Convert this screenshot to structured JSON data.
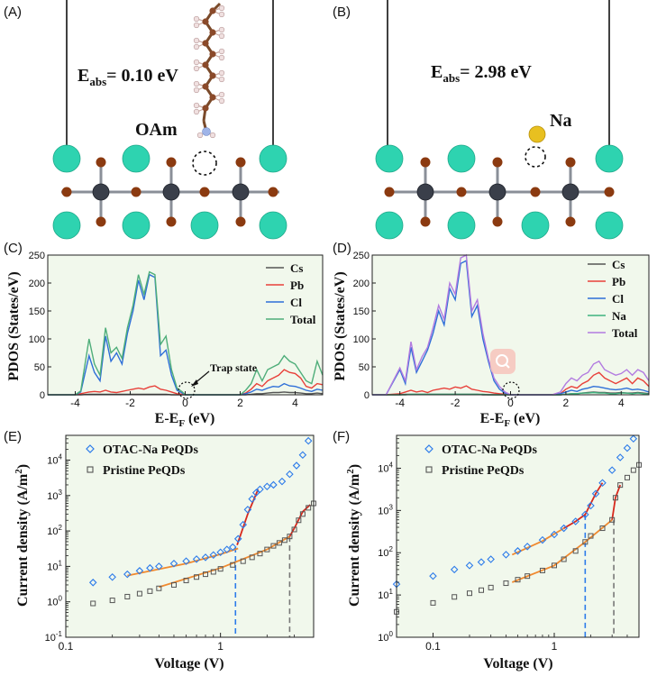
{
  "panels": {
    "a": {
      "letter": "(A)",
      "energy_main": "E",
      "energy_sub": "abs",
      "energy_value": "= 0.10 eV",
      "molecule_label": "OAm"
    },
    "b": {
      "letter": "(B)",
      "energy_main": "E",
      "energy_sub": "abs",
      "energy_value": "= 2.98 eV",
      "atom_label": "Na"
    },
    "c": {
      "letter": "(C)",
      "ylabel": "PDOS (States/eV)",
      "xlabel_main": "E-E",
      "xlabel_sub": "F",
      "xlabel_unit": " (eV)",
      "annotation": "Trap state",
      "yticks": [
        "0",
        "50",
        "100",
        "150",
        "200",
        "250"
      ],
      "xticks": [
        "-4",
        "-2",
        "0",
        "2",
        "4"
      ]
    },
    "d": {
      "letter": "(D)",
      "ylabel": "PDOS (States/eV)",
      "xlabel_main": "E-E",
      "xlabel_sub": "F",
      "xlabel_unit": " (eV)",
      "yticks": [
        "0",
        "50",
        "100",
        "150",
        "200",
        "250"
      ],
      "xticks": [
        "-4",
        "-2",
        "0",
        "2",
        "4"
      ]
    },
    "e": {
      "letter": "(E)",
      "ylabel": "Current density (A/m",
      "ylabel_sup": "2",
      "ylabel_end": ")",
      "xlabel": "Voltage (V)",
      "xticks": [
        "0.1",
        "1"
      ],
      "ytick_exps": [
        "-1",
        "0",
        "1",
        "2",
        "3",
        "4"
      ]
    },
    "f": {
      "letter": "(F)",
      "ylabel": "Current density (A/m",
      "ylabel_sup": "2",
      "ylabel_end": ")",
      "xlabel": "Voltage (V)",
      "xticks": [
        "0.1",
        "1"
      ],
      "ytick_exps": [
        "0",
        "1",
        "2",
        "3",
        "4"
      ]
    }
  },
  "colors": {
    "cs_atom": "#2ED3B0",
    "pb_atom": "#3A3F4A",
    "cl_atom": "#8B3A10",
    "na_atom": "#E8C020",
    "bond": "#8A8F98",
    "plot_bg": "#F1F8EC",
    "cs_line": "#555555",
    "pb_line": "#E8403A",
    "cl_line": "#2E6FD8",
    "na_line": "#3FB27F",
    "total_line": "#B27BE0",
    "total_c": "#4FAE7A",
    "otac": "#2C7BEA",
    "pristine": "#555555",
    "fit_red": "#D8281C",
    "fit_orange": "#F08A30"
  },
  "chart_data": [
    {
      "panel": "C",
      "type": "line",
      "xlabel": "E-E_F (eV)",
      "ylabel": "PDOS (States/eV)",
      "xlim": [
        -5,
        5
      ],
      "ylim": [
        0,
        250
      ],
      "legend_position": "top-right",
      "x": [
        -5,
        -4,
        -3.8,
        -3.5,
        -3.3,
        -3.1,
        -2.9,
        -2.7,
        -2.5,
        -2.3,
        -2.1,
        -1.9,
        -1.7,
        -1.5,
        -1.3,
        -1.1,
        -0.9,
        -0.7,
        -0.5,
        -0.3,
        -0.1,
        0,
        0.2,
        0.5,
        1,
        1.5,
        2,
        2.2,
        2.4,
        2.6,
        2.8,
        3,
        3.2,
        3.4,
        3.6,
        3.8,
        4,
        4.2,
        4.4,
        4.6,
        4.8,
        5
      ],
      "series": [
        {
          "name": "Cs",
          "values": [
            0,
            0,
            0,
            1,
            1,
            1,
            1,
            1,
            1,
            1,
            1,
            1,
            1,
            1,
            1,
            1,
            1,
            1,
            0,
            0,
            0,
            0,
            0,
            0,
            0,
            0,
            0,
            0,
            1,
            2,
            2,
            3,
            4,
            4,
            5,
            4,
            4,
            3,
            2,
            2,
            3,
            2
          ]
        },
        {
          "name": "Pb",
          "values": [
            0,
            0,
            2,
            5,
            6,
            5,
            8,
            5,
            4,
            6,
            8,
            10,
            12,
            10,
            14,
            16,
            10,
            8,
            5,
            2,
            1,
            0,
            0,
            0,
            0,
            0,
            0,
            3,
            10,
            20,
            15,
            25,
            30,
            35,
            45,
            40,
            38,
            30,
            15,
            12,
            20,
            18
          ]
        },
        {
          "name": "Cl",
          "values": [
            0,
            0,
            5,
            70,
            40,
            25,
            105,
            60,
            75,
            55,
            110,
            150,
            205,
            170,
            215,
            210,
            70,
            80,
            35,
            8,
            3,
            0,
            0,
            0,
            0,
            0,
            0,
            2,
            5,
            10,
            8,
            12,
            15,
            14,
            20,
            16,
            15,
            12,
            8,
            6,
            10,
            8
          ]
        },
        {
          "name": "Total",
          "values": [
            0,
            0,
            7,
            100,
            55,
            35,
            120,
            75,
            85,
            65,
            120,
            160,
            215,
            180,
            220,
            215,
            90,
            105,
            45,
            12,
            5,
            0,
            0,
            0,
            0,
            0,
            0,
            8,
            20,
            45,
            25,
            45,
            50,
            55,
            70,
            60,
            55,
            40,
            25,
            20,
            60,
            35
          ]
        }
      ]
    },
    {
      "panel": "D",
      "type": "line",
      "xlabel": "E-E_F (eV)",
      "ylabel": "PDOS (States/eV)",
      "xlim": [
        -5,
        5
      ],
      "ylim": [
        0,
        250
      ],
      "legend_position": "top-right",
      "x": [
        -5,
        -4.5,
        -4,
        -3.8,
        -3.6,
        -3.4,
        -3.2,
        -3,
        -2.8,
        -2.6,
        -2.4,
        -2.2,
        -2,
        -1.8,
        -1.6,
        -1.4,
        -1.2,
        -1,
        -0.8,
        -0.6,
        -0.4,
        -0.2,
        0,
        0.5,
        1,
        1.5,
        1.8,
        2,
        2.2,
        2.4,
        2.6,
        2.8,
        3,
        3.2,
        3.4,
        3.6,
        3.8,
        4,
        4.2,
        4.4,
        4.6,
        4.8,
        5
      ],
      "series": [
        {
          "name": "Cs",
          "values": [
            0,
            0,
            0,
            1,
            1,
            1,
            1,
            1,
            1,
            1,
            1,
            1,
            1,
            1,
            1,
            1,
            1,
            0,
            0,
            0,
            0,
            0,
            0,
            0,
            0,
            0,
            0,
            1,
            2,
            2,
            3,
            4,
            5,
            4,
            4,
            3,
            3,
            4,
            3,
            3,
            4,
            3,
            2
          ]
        },
        {
          "name": "Pb",
          "values": [
            0,
            0,
            2,
            5,
            8,
            5,
            7,
            4,
            8,
            10,
            12,
            10,
            14,
            12,
            16,
            10,
            8,
            6,
            5,
            3,
            2,
            1,
            0,
            0,
            0,
            0,
            2,
            10,
            15,
            12,
            20,
            25,
            35,
            40,
            30,
            25,
            20,
            25,
            30,
            20,
            30,
            25,
            15
          ]
        },
        {
          "name": "Cl",
          "values": [
            0,
            0,
            45,
            20,
            85,
            40,
            60,
            80,
            110,
            150,
            125,
            190,
            170,
            235,
            240,
            140,
            160,
            100,
            60,
            25,
            10,
            3,
            0,
            0,
            0,
            0,
            2,
            5,
            8,
            6,
            10,
            12,
            15,
            14,
            12,
            10,
            9,
            10,
            12,
            9,
            10,
            8,
            5
          ]
        },
        {
          "name": "Na",
          "values": [
            0,
            0,
            0,
            0,
            1,
            1,
            1,
            1,
            1,
            1,
            1,
            1,
            1,
            1,
            1,
            1,
            1,
            1,
            0,
            0,
            0,
            0,
            0,
            0,
            0,
            0,
            0,
            1,
            2,
            2,
            3,
            3,
            4,
            3,
            3,
            2,
            2,
            3,
            3,
            2,
            3,
            2,
            1
          ]
        },
        {
          "name": "Total",
          "values": [
            0,
            0,
            48,
            25,
            95,
            45,
            68,
            85,
            120,
            160,
            135,
            200,
            180,
            245,
            250,
            150,
            170,
            110,
            65,
            30,
            15,
            5,
            0,
            0,
            0,
            0,
            5,
            20,
            30,
            25,
            35,
            40,
            55,
            60,
            45,
            40,
            35,
            38,
            45,
            35,
            45,
            40,
            25
          ]
        }
      ]
    },
    {
      "panel": "E",
      "type": "scatter",
      "xlabel": "Voltage (V)",
      "ylabel": "Current density (A/m2)",
      "xscale": "log",
      "yscale": "log",
      "xlim": [
        0.1,
        4
      ],
      "ylim": [
        0.1,
        50000
      ],
      "legend_position": "top-left",
      "series": [
        {
          "name": "OTAC-Na PeQDs",
          "x": [
            0.15,
            0.2,
            0.25,
            0.3,
            0.35,
            0.4,
            0.5,
            0.6,
            0.7,
            0.8,
            0.9,
            1,
            1.1,
            1.2,
            1.3,
            1.4,
            1.5,
            1.6,
            1.7,
            1.8,
            2,
            2.2,
            2.5,
            2.8,
            3.1,
            3.4,
            3.7
          ],
          "values": [
            3.5,
            5,
            6,
            7.5,
            9,
            10,
            12,
            14,
            16,
            18,
            21,
            25,
            30,
            35,
            60,
            150,
            400,
            800,
            1200,
            1500,
            1800,
            2000,
            2500,
            4000,
            7000,
            14000,
            35000
          ]
        },
        {
          "name": "Pristine PeQDs",
          "x": [
            0.15,
            0.2,
            0.25,
            0.3,
            0.35,
            0.4,
            0.5,
            0.6,
            0.7,
            0.8,
            0.9,
            1,
            1.2,
            1.4,
            1.6,
            1.8,
            2,
            2.2,
            2.4,
            2.6,
            2.8,
            3,
            3.2,
            3.4,
            3.7,
            4
          ],
          "values": [
            0.9,
            1.1,
            1.4,
            1.7,
            2,
            2.4,
            3,
            4,
            5,
            6,
            7,
            8.5,
            11,
            14,
            18,
            23,
            30,
            38,
            46,
            55,
            70,
            110,
            200,
            300,
            450,
            600
          ]
        }
      ],
      "dashed_markers_x": [
        1.25,
        2.8
      ]
    },
    {
      "panel": "F",
      "type": "scatter",
      "xlabel": "Voltage (V)",
      "ylabel": "Current density (A/m2)",
      "xscale": "log",
      "yscale": "log",
      "xlim": [
        0.05,
        5
      ],
      "ylim": [
        1,
        60000
      ],
      "legend_position": "top-left",
      "series": [
        {
          "name": "OTAC-Na PeQDs",
          "x": [
            0.05,
            0.1,
            0.15,
            0.2,
            0.25,
            0.3,
            0.4,
            0.5,
            0.6,
            0.8,
            1,
            1.2,
            1.5,
            1.8,
            2,
            2.2,
            2.5,
            3,
            3.5,
            4,
            4.5
          ],
          "values": [
            18,
            28,
            40,
            50,
            60,
            70,
            90,
            110,
            140,
            200,
            270,
            380,
            550,
            800,
            1300,
            2500,
            4500,
            9000,
            18000,
            30000,
            50000
          ]
        },
        {
          "name": "Pristine PeQDs",
          "x": [
            0.05,
            0.1,
            0.15,
            0.2,
            0.25,
            0.3,
            0.4,
            0.5,
            0.6,
            0.8,
            1,
            1.2,
            1.5,
            1.8,
            2,
            2.5,
            3,
            3.2,
            3.5,
            4,
            4.5,
            5
          ],
          "values": [
            4,
            6.5,
            9,
            11,
            13,
            15,
            19,
            23,
            28,
            38,
            50,
            70,
            110,
            180,
            250,
            380,
            600,
            2000,
            4000,
            6000,
            9000,
            12000
          ]
        }
      ],
      "dashed_markers_x": [
        1.8,
        3.1
      ]
    }
  ]
}
